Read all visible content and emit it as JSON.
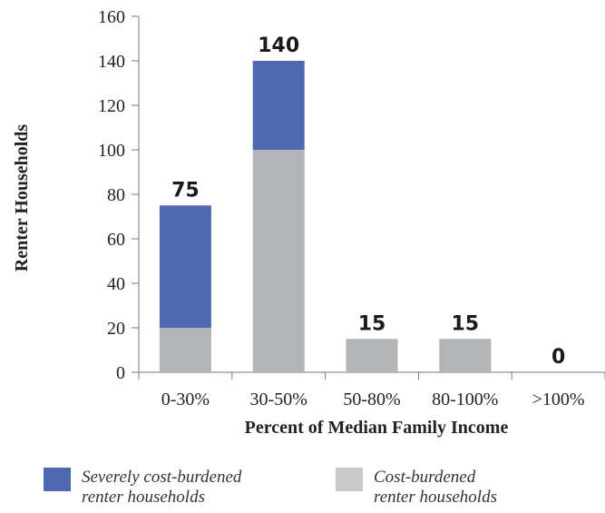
{
  "chart_data": {
    "type": "bar",
    "stacked": true,
    "categories": [
      "0-30%",
      "30-50%",
      "50-80%",
      "80-100%",
      ">100%"
    ],
    "series": [
      {
        "name": "Cost-burdened renter households",
        "values": [
          20,
          100,
          15,
          15,
          0
        ],
        "color": "#b3b4b6"
      },
      {
        "name": "Severely cost-burdened renter households",
        "values": [
          55,
          40,
          0,
          0,
          0
        ],
        "color": "#5068b1"
      }
    ],
    "totals": [
      "75",
      "140",
      "15",
      "15",
      "0"
    ],
    "xlabel": "Percent of Median Family Income",
    "ylabel": "Renter Households",
    "ylim": [
      0,
      160
    ],
    "yticks": [
      0,
      20,
      40,
      60,
      80,
      100,
      120,
      140,
      160
    ],
    "grid": false
  },
  "legend": {
    "items": [
      {
        "line1": "Severely cost-burdened",
        "line2": "renter households",
        "color": "#5068b1"
      },
      {
        "line1": "Cost-burdened",
        "line2": "renter households",
        "color": "#c8c9cb"
      }
    ]
  }
}
